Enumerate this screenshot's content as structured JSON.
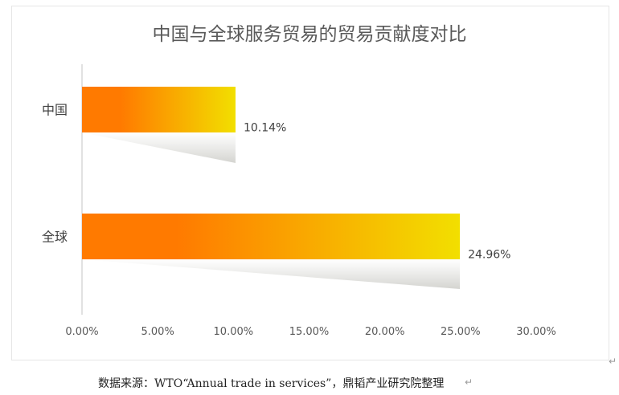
{
  "chart_data": {
    "type": "bar",
    "orientation": "horizontal",
    "title": "中国与全球服务贸易的贸易贡献度对比",
    "categories": [
      "中国",
      "全球"
    ],
    "values": [
      10.14,
      24.96
    ],
    "value_labels": [
      "10.14%",
      "24.96%"
    ],
    "xlim": [
      0,
      30
    ],
    "xticks": [
      0,
      5,
      10,
      15,
      20,
      25,
      30
    ],
    "xtick_labels": [
      "0.00%",
      "5.00%",
      "10.00%",
      "15.00%",
      "20.00%",
      "25.00%",
      "30.00%"
    ],
    "xlabel": "",
    "ylabel": "",
    "grid": false,
    "legend": "none",
    "colors": {
      "gradient_start": "#ff7700",
      "gradient_end": "#f2e200",
      "shadow": "#d9d9d9"
    }
  },
  "source_note": "数据来源：WTO“Annual trade in services”，鼎韬产业研究院整理",
  "paragraph_mark": "↵"
}
